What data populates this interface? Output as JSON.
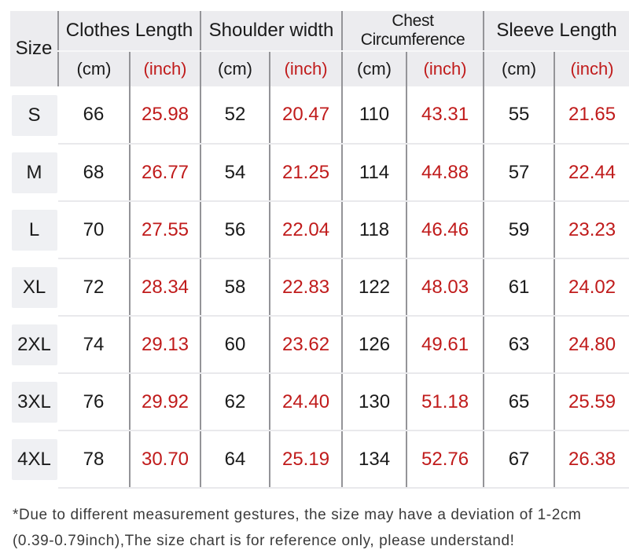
{
  "table": {
    "size_header": "Size",
    "groups": [
      {
        "label": "Clothes Length"
      },
      {
        "label": "Shoulder width"
      },
      {
        "label": "Chest Circumference"
      },
      {
        "label": "Sleeve Length"
      }
    ],
    "unit_cm": "(cm)",
    "unit_inch": "(inch)",
    "rows": [
      {
        "size": "S",
        "values": [
          "66",
          "25.98",
          "52",
          "20.47",
          "110",
          "43.31",
          "55",
          "21.65"
        ]
      },
      {
        "size": "M",
        "values": [
          "68",
          "26.77",
          "54",
          "21.25",
          "114",
          "44.88",
          "57",
          "22.44"
        ]
      },
      {
        "size": "L",
        "values": [
          "70",
          "27.55",
          "56",
          "22.04",
          "118",
          "46.46",
          "59",
          "23.23"
        ]
      },
      {
        "size": "XL",
        "values": [
          "72",
          "28.34",
          "58",
          "22.83",
          "122",
          "48.03",
          "61",
          "24.02"
        ]
      },
      {
        "size": "2XL",
        "values": [
          "74",
          "29.13",
          "60",
          "23.62",
          "126",
          "49.61",
          "63",
          "24.80"
        ]
      },
      {
        "size": "3XL",
        "values": [
          "76",
          "29.92",
          "62",
          "24.40",
          "130",
          "51.18",
          "65",
          "25.59"
        ]
      },
      {
        "size": "4XL",
        "values": [
          "78",
          "30.70",
          "64",
          "25.19",
          "134",
          "52.76",
          "67",
          "26.38"
        ]
      }
    ]
  },
  "footnote": {
    "line1": "*Due to different measurement gestures, the size may have a deviation of 1-2cm",
    "line2": "(0.39-0.79inch),The size chart is for reference only, please understand!"
  },
  "colors": {
    "accent_red": "#c01b1b",
    "header_bg": "#ececef",
    "size_chip_bg": "#eff0f3",
    "grid_line": "#949498",
    "row_separator": "#e9e9ec",
    "text": "#1a1a1a"
  },
  "chart_data": {
    "type": "table",
    "title": "Garment size chart",
    "columns": [
      "Size",
      "Clothes Length (cm)",
      "Clothes Length (inch)",
      "Shoulder width (cm)",
      "Shoulder width (inch)",
      "Chest Circumference (cm)",
      "Chest Circumference (inch)",
      "Sleeve Length (cm)",
      "Sleeve Length (inch)"
    ],
    "rows": [
      [
        "S",
        66,
        25.98,
        52,
        20.47,
        110,
        43.31,
        55,
        21.65
      ],
      [
        "M",
        68,
        26.77,
        54,
        21.25,
        114,
        44.88,
        57,
        22.44
      ],
      [
        "L",
        70,
        27.55,
        56,
        22.04,
        118,
        46.46,
        59,
        23.23
      ],
      [
        "XL",
        72,
        28.34,
        58,
        22.83,
        122,
        48.03,
        61,
        24.02
      ],
      [
        "2XL",
        74,
        29.13,
        60,
        23.62,
        126,
        49.61,
        63,
        24.8
      ],
      [
        "3XL",
        76,
        29.92,
        62,
        24.4,
        130,
        51.18,
        65,
        25.59
      ],
      [
        "4XL",
        78,
        30.7,
        64,
        25.19,
        134,
        52.76,
        67,
        26.38
      ]
    ],
    "notes": "*Due to different measurement gestures, the size may have a deviation of 1-2cm (0.39-0.79inch),The size chart is for reference only, please understand!"
  }
}
